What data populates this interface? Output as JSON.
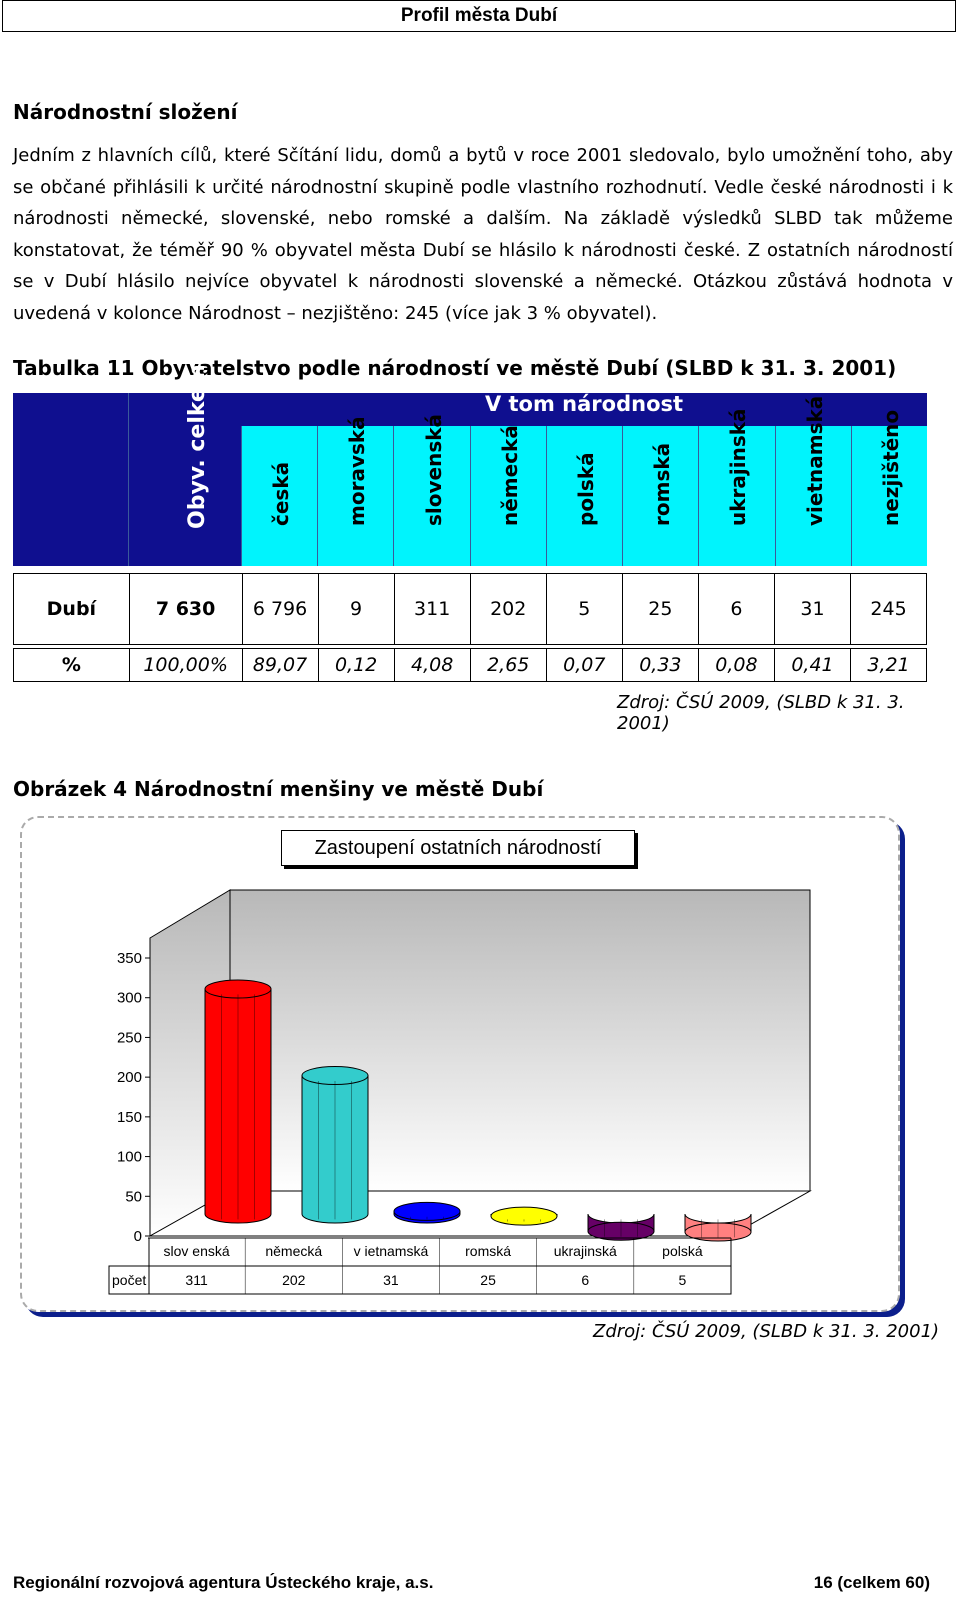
{
  "header": {
    "title": "Profil města Dubí"
  },
  "section": {
    "heading": "Národnostní složení",
    "paragraph": "Jedním z hlavních cílů, které Sčítání lidu, domů a bytů v roce 2001 sledovalo, bylo umožnění toho, aby se občané přihlásili k určité národnostní skupině podle vlastního rozhodnutí. Vedle české národnosti i k národnosti německé, slovenské, nebo romské a dalším. Na základě výsledků SLBD tak můžeme konstatovat, že téměř 90 % obyvatel města Dubí se hlásilo k národnosti české. Z ostatních národností se v Dubí hlásilo nejvíce obyvatel k národnosti slovenské a německé. Otázkou zůstává hodnota v uvedená v kolonce Národnost – nezjištěno: 245 (více jak 3 % obyvatel)."
  },
  "table": {
    "caption": "Tabulka 11 Obyvatelstvo podle národností ve městě Dubí  (SLBD k 31. 3. 2001)",
    "total_header": "Obyv. celkem",
    "group_header": "V tom národnost",
    "columns": [
      "česká",
      "moravská",
      "slovenská",
      "německá",
      "polská",
      "romská",
      "ukrajinská",
      "vietnamská",
      "nezjištěno"
    ],
    "rows": [
      {
        "label": "Dubí",
        "total": "7 630",
        "values": [
          "6 796",
          "9",
          "311",
          "202",
          "5",
          "25",
          "6",
          "31",
          "245"
        ]
      },
      {
        "label": "%",
        "total": "100,00%",
        "values": [
          "89,07",
          "0,12",
          "4,08",
          "2,65",
          "0,07",
          "0,33",
          "0,08",
          "0,41",
          "3,21"
        ]
      }
    ],
    "source": "Zdroj: ČSÚ 2009,  (SLBD k 31. 3. 2001)"
  },
  "figure": {
    "caption": "Obrázek 4 Národnostní menšiny ve městě Dubí",
    "source": "Zdroj: ČSÚ 2009,  (SLBD k 31. 3. 2001)"
  },
  "chart_data": {
    "type": "bar",
    "title": "Zastoupení ostatních národností",
    "categories": [
      "slov enská",
      "německá",
      "v ietnamská",
      "romská",
      "ukrajinská",
      "polská"
    ],
    "values": [
      311,
      202,
      31,
      25,
      6,
      5
    ],
    "table_row_label": "počet",
    "colors": [
      "#ff0000",
      "#33cccc",
      "#0000ff",
      "#ffff00",
      "#660066",
      "#ff8080"
    ],
    "yticks": [
      0,
      50,
      100,
      150,
      200,
      250,
      300,
      350
    ],
    "ylim": [
      0,
      350
    ],
    "grid": false,
    "style": "3d-cylinder"
  },
  "footer": {
    "left": "Regionální rozvojová agentura Ústeckého kraje, a.s.",
    "right": "16 (celkem 60)"
  }
}
